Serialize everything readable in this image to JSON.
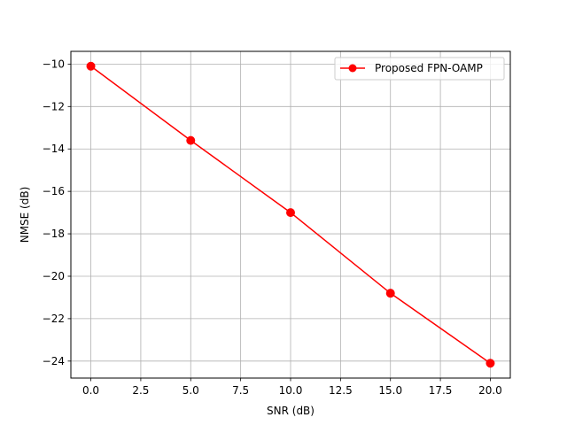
{
  "chart_data": {
    "type": "line",
    "title": "",
    "xlabel": "SNR (dB)",
    "ylabel": "NMSE (dB)",
    "xlim": [
      -1,
      21
    ],
    "ylim": [
      -24.8,
      -9.4
    ],
    "grid": true,
    "legend_position": "top-right",
    "x_ticks": [
      0.0,
      2.5,
      5.0,
      7.5,
      10.0,
      12.5,
      15.0,
      17.5,
      20.0
    ],
    "x_tick_labels": [
      "0.0",
      "2.5",
      "5.0",
      "7.5",
      "10.0",
      "12.5",
      "15.0",
      "17.5",
      "20.0"
    ],
    "y_ticks": [
      -10,
      -12,
      -14,
      -16,
      -18,
      -20,
      -22,
      -24
    ],
    "y_tick_labels": [
      "−10",
      "−12",
      "−14",
      "−16",
      "−18",
      "−20",
      "−22",
      "−24"
    ],
    "series": [
      {
        "name": "Proposed FPN-OAMP",
        "color": "#ff0000",
        "marker": "circle",
        "x": [
          0,
          5,
          10,
          15,
          20
        ],
        "y": [
          -10.1,
          -13.6,
          -17.0,
          -20.8,
          -24.1
        ]
      }
    ]
  }
}
